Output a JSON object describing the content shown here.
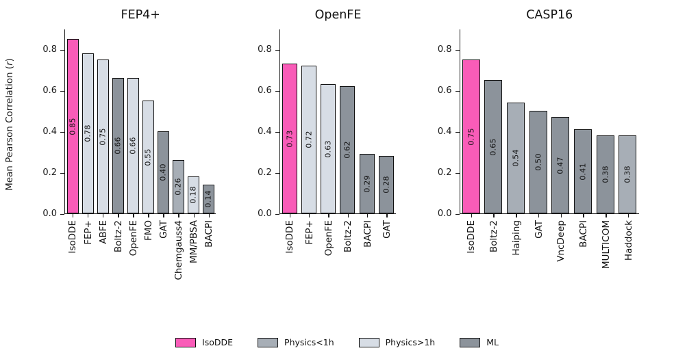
{
  "figure": {
    "ylabel": {
      "prefix": "Mean Pearson Correlation (",
      "italic": "r",
      "suffix": ")"
    },
    "colors": {
      "isodde": "#f95cb8",
      "physics_lt1h": "#a7aeb6",
      "physics_gt1h": "#d7dde5",
      "ml": "#8c939b",
      "edge": "#111111",
      "axis": "#1a1a1a"
    },
    "legend": [
      {
        "label": "IsoDDE",
        "color_key": "isodde"
      },
      {
        "label": "Physics<1h",
        "color_key": "physics_lt1h"
      },
      {
        "label": "Physics>1h",
        "color_key": "physics_gt1h"
      },
      {
        "label": "ML",
        "color_key": "ml"
      }
    ]
  },
  "chart_data": [
    {
      "type": "bar",
      "title": "FEP4+",
      "ylabel": "Mean Pearson Correlation (r)",
      "ylim": [
        0,
        0.9
      ],
      "yticks": [
        "0.0",
        "0.2",
        "0.4",
        "0.6",
        "0.8"
      ],
      "grid": false,
      "categories": [
        "IsoDDE",
        "FEP+",
        "ABFE",
        "Boltz-2",
        "OpenFE",
        "FMO",
        "GAT",
        "Chemgauss4",
        "MM/PBSA",
        "BACPI"
      ],
      "values": [
        0.85,
        0.78,
        0.75,
        0.66,
        0.66,
        0.55,
        0.4,
        0.26,
        0.18,
        0.14
      ],
      "bar_labels": [
        "0.85",
        "0.78",
        "0.75",
        "0.66",
        "0.66",
        "0.55",
        "0.40",
        "0.26",
        "0.18",
        "0.14"
      ],
      "groups": [
        "isodde",
        "physics_gt1h",
        "physics_gt1h",
        "ml",
        "physics_gt1h",
        "physics_gt1h",
        "ml",
        "physics_lt1h",
        "physics_gt1h",
        "ml"
      ]
    },
    {
      "type": "bar",
      "title": "OpenFE",
      "ylabel": "Mean Pearson Correlation (r)",
      "ylim": [
        0,
        0.9
      ],
      "yticks": [
        "0.0",
        "0.2",
        "0.4",
        "0.6",
        "0.8"
      ],
      "grid": false,
      "categories": [
        "IsoDDE",
        "FEP+",
        "OpenFE",
        "Boltz-2",
        "BACPI",
        "GAT"
      ],
      "values": [
        0.73,
        0.72,
        0.63,
        0.62,
        0.29,
        0.28
      ],
      "bar_labels": [
        "0.73",
        "0.72",
        "0.63",
        "0.62",
        "0.29",
        "0.28"
      ],
      "groups": [
        "isodde",
        "physics_gt1h",
        "physics_gt1h",
        "ml",
        "ml",
        "ml"
      ]
    },
    {
      "type": "bar",
      "title": "CASP16",
      "ylabel": "Mean Pearson Correlation (r)",
      "ylim": [
        0,
        0.9
      ],
      "yticks": [
        "0.0",
        "0.2",
        "0.4",
        "0.6",
        "0.8"
      ],
      "grid": false,
      "categories": [
        "IsoDDE",
        "Boltz-2",
        "Haiping",
        "GAT",
        "VncDeep",
        "BACPI",
        "MULTICOM",
        "Haddock"
      ],
      "values": [
        0.75,
        0.65,
        0.54,
        0.5,
        0.47,
        0.41,
        0.38,
        0.38
      ],
      "bar_labels": [
        "0.75",
        "0.65",
        "0.54",
        "0.50",
        "0.47",
        "0.41",
        "0.38",
        "0.38"
      ],
      "groups": [
        "isodde",
        "ml",
        "physics_lt1h",
        "ml",
        "ml",
        "ml",
        "ml",
        "physics_lt1h"
      ]
    }
  ]
}
